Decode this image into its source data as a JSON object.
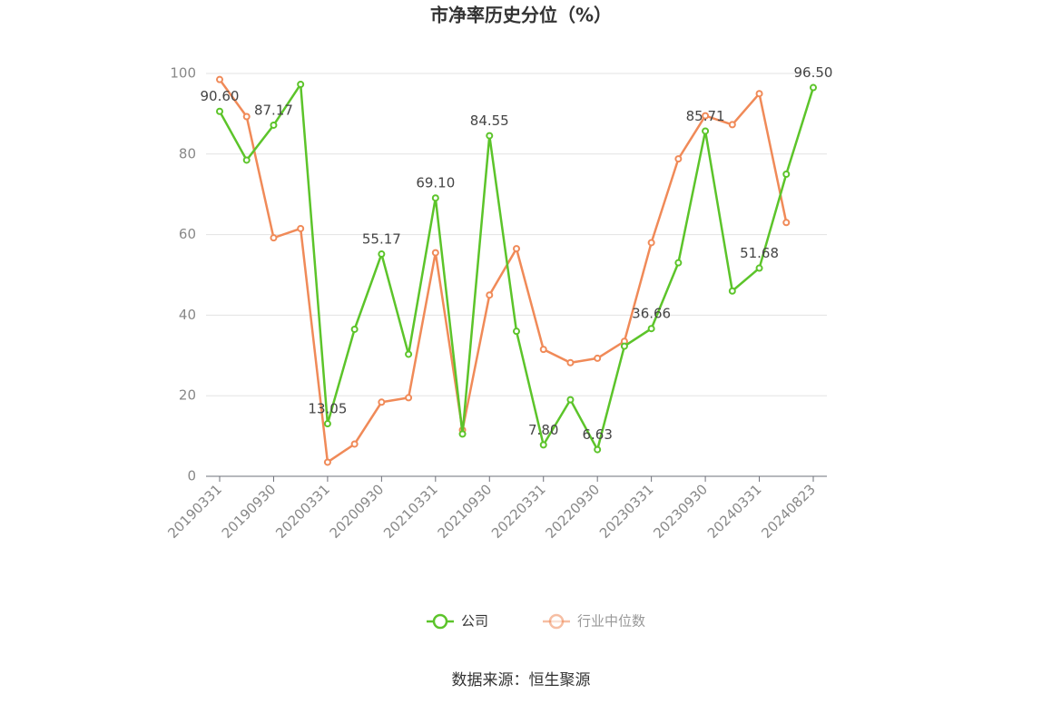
{
  "chart_data": {
    "type": "line",
    "title": "市净率历史分位（%）",
    "source": "数据来源：恒生聚源",
    "categories": [
      "20190331",
      null,
      "20190930",
      null,
      "20200331",
      null,
      "20200930",
      null,
      "20210331",
      null,
      "20210930",
      null,
      "20220331",
      null,
      "20220930",
      null,
      "20230331",
      null,
      "20230930",
      null,
      "20240331",
      null,
      "20240823"
    ],
    "series": [
      {
        "name": "公司",
        "color": "#5cc42a",
        "values": [
          90.6,
          78.5,
          87.17,
          97.3,
          13.05,
          36.5,
          55.17,
          30.3,
          69.1,
          10.5,
          84.55,
          36,
          7.8,
          19,
          6.63,
          32.3,
          36.66,
          53,
          85.71,
          46,
          51.68,
          75,
          96.5
        ],
        "value_labels": [
          "90.60",
          null,
          "87.17",
          null,
          "13.05",
          null,
          "55.17",
          null,
          "69.10",
          null,
          "84.55",
          null,
          "7.80",
          null,
          "6.63",
          null,
          "36.66",
          null,
          "85.71",
          null,
          "51.68",
          null,
          "96.50"
        ]
      },
      {
        "name": "行业中位数",
        "color": "#f08a58",
        "values": [
          98.5,
          89.3,
          59.2,
          61.5,
          3.5,
          8,
          18.4,
          19.5,
          55.5,
          11.5,
          45,
          56.5,
          31.5,
          28.2,
          29.3,
          33.5,
          58,
          78.8,
          89.5,
          87.3,
          95,
          63,
          null
        ]
      }
    ],
    "ylim": [
      0,
      100
    ],
    "yticks": [
      0,
      20,
      40,
      60,
      80,
      100
    ],
    "grid": true
  }
}
